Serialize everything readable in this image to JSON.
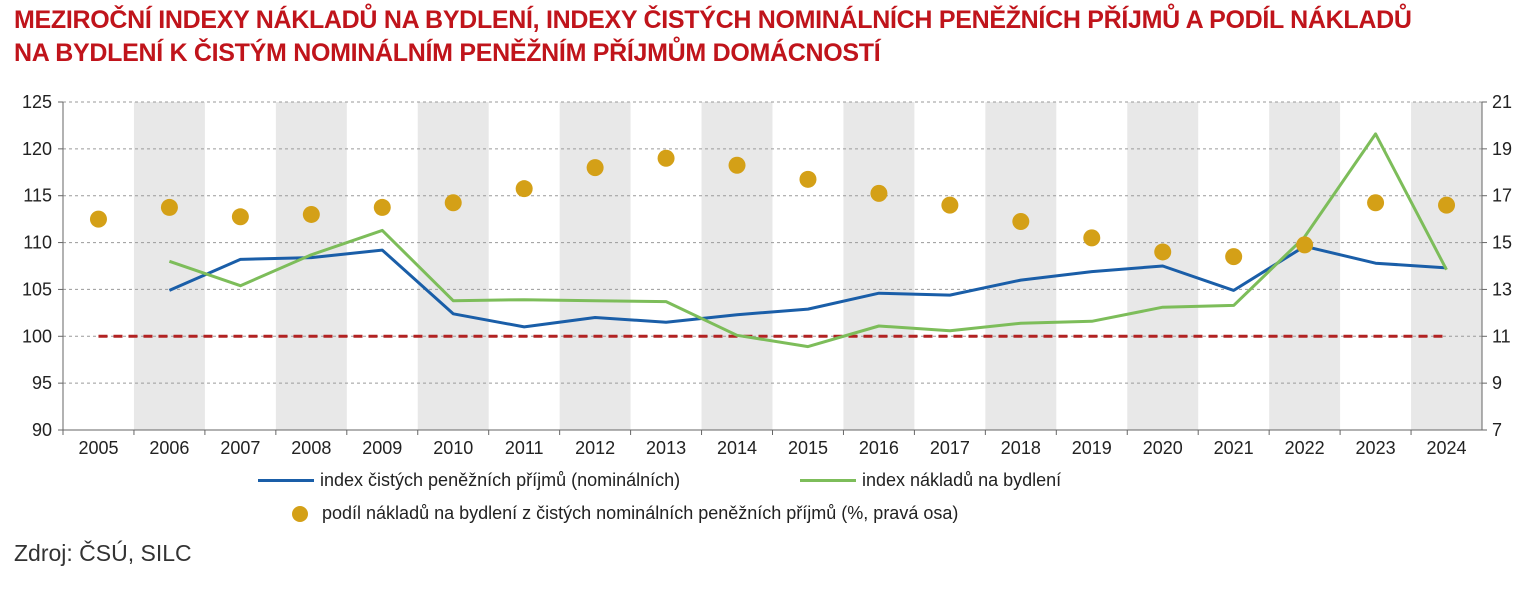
{
  "title_lines": [
    "MEZIROČNÍ INDEXY NÁKLADŮ NA BYDLENÍ, INDEXY ČISTÝCH NOMINÁLNÍCH PENĚŽNÍCH PŘÍJMŮ A PODÍL NÁKLADŮ",
    "NA BYDLENÍ K ČISTÝM NOMINÁLNÍM PENĚŽNÍM PŘÍJMŮM DOMÁCNOSTÍ"
  ],
  "source": "Zdroj: ČSÚ, SILC",
  "colors": {
    "title": "#c0141b",
    "income_line": "#1a5ea8",
    "costs_line": "#7dbd5a",
    "share_dots": "#d4a017",
    "baseline": "#b22222",
    "band": "#e8e8e8"
  },
  "chart_data": {
    "type": "line",
    "categories": [
      "2005",
      "2006",
      "2007",
      "2008",
      "2009",
      "2010",
      "2011",
      "2012",
      "2013",
      "2014",
      "2015",
      "2016",
      "2017",
      "2018",
      "2019",
      "2020",
      "2021",
      "2022",
      "2023",
      "2024"
    ],
    "ylim_left": [
      90,
      125
    ],
    "yticks_left": [
      90,
      95,
      100,
      105,
      110,
      115,
      120,
      125
    ],
    "ylim_right": [
      7,
      21
    ],
    "yticks_right": [
      7,
      9,
      11,
      13,
      15,
      17,
      19,
      21
    ],
    "grid": true,
    "shaded_years": [
      "2006",
      "2008",
      "2010",
      "2012",
      "2014",
      "2016",
      "2018",
      "2020",
      "2022",
      "2024"
    ],
    "reference_line": 100,
    "series": [
      {
        "name": "index čistých peněžních příjmů (nominálních)",
        "axis": "left",
        "values": [
          null,
          104.9,
          108.2,
          108.4,
          109.2,
          102.4,
          101.0,
          102.0,
          101.5,
          102.3,
          102.9,
          104.6,
          104.4,
          106.0,
          106.9,
          107.5,
          104.9,
          109.6,
          107.8,
          107.3
        ]
      },
      {
        "name": "index nákladů na bydlení",
        "axis": "left",
        "values": [
          null,
          108.0,
          105.4,
          108.7,
          111.3,
          103.8,
          103.9,
          103.8,
          103.7,
          100.1,
          98.9,
          101.1,
          100.6,
          101.4,
          101.6,
          103.1,
          103.3,
          110.6,
          121.6,
          107.1
        ]
      },
      {
        "name": "podíl nákladů na bydlení z čistých nominálních peněžních příjmů (%, pravá osa)",
        "axis": "right",
        "values": [
          16.0,
          16.5,
          16.1,
          16.2,
          16.5,
          16.7,
          17.3,
          18.2,
          18.6,
          18.3,
          17.7,
          17.1,
          16.6,
          15.9,
          15.2,
          14.6,
          14.4,
          14.9,
          16.7,
          16.6
        ]
      }
    ]
  }
}
